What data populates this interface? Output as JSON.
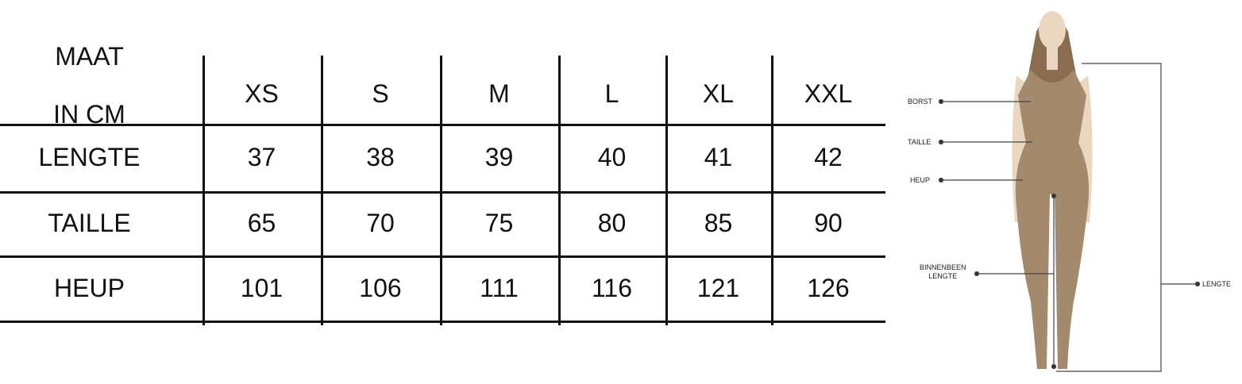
{
  "table": {
    "corner": [
      "MAAT",
      "IN CM"
    ],
    "sizes": [
      "XS",
      "S",
      "M",
      "L",
      "XL",
      "XXL"
    ],
    "rows": [
      {
        "label": "LENGTE",
        "values": [
          "37",
          "38",
          "39",
          "40",
          "41",
          "42"
        ]
      },
      {
        "label": "TAILLE",
        "values": [
          "65",
          "70",
          "75",
          "80",
          "85",
          "90"
        ]
      },
      {
        "label": "HEUP",
        "values": [
          "101",
          "106",
          "111",
          "116",
          "121",
          "126"
        ]
      }
    ]
  },
  "figure": {
    "labels": {
      "borst": "BORST",
      "taille": "TAILLE",
      "heup": "HEUP",
      "binnenbeen": [
        "BINNENBEEN",
        "LENGTE"
      ],
      "lengte": "LENGTE"
    },
    "colors": {
      "garment": "#a48a6c",
      "skin": "#ead7c0",
      "hair": "#8a6c4e"
    }
  }
}
